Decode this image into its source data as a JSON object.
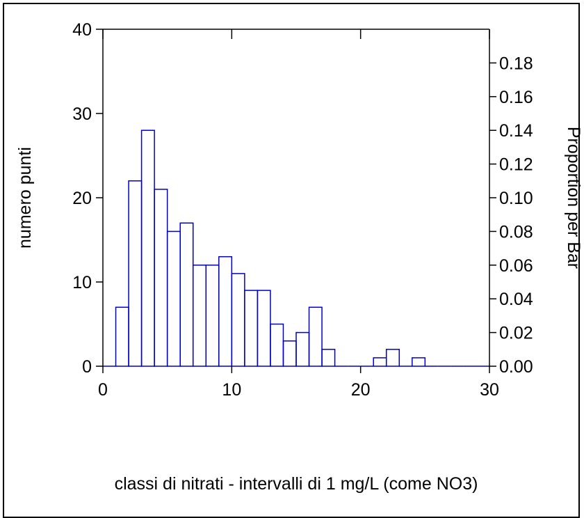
{
  "chart_data": {
    "type": "bar",
    "bin_width": 1,
    "x": [
      0,
      1,
      2,
      3,
      4,
      5,
      6,
      7,
      8,
      9,
      10,
      11,
      12,
      13,
      14,
      15,
      16,
      17,
      18,
      19,
      20,
      21,
      22,
      23,
      24,
      25,
      26,
      27,
      28,
      29
    ],
    "values": [
      0,
      7,
      22,
      28,
      21,
      16,
      17,
      12,
      12,
      13,
      11,
      9,
      9,
      5,
      3,
      4,
      7,
      2,
      0,
      0,
      0,
      1,
      2,
      0,
      1,
      0,
      0,
      0,
      0,
      0
    ],
    "xlabel": "classi di nitrati - intervalli di 1 mg/L (come NO3)",
    "ylabel": "numero punti",
    "y2label": "Proportion per Bar",
    "xlim": [
      0,
      30
    ],
    "ylim": [
      0,
      40
    ],
    "y2lim": [
      0,
      0.2
    ],
    "x_ticks": [
      "0",
      "10",
      "20",
      "30"
    ],
    "y_ticks": [
      "0",
      "10",
      "20",
      "30",
      "40"
    ],
    "y2_ticks": [
      "0.00",
      "0.02",
      "0.04",
      "0.06",
      "0.08",
      "0.10",
      "0.12",
      "0.14",
      "0.16",
      "0.18"
    ],
    "grid": false,
    "bar_color": "#0000cc"
  }
}
